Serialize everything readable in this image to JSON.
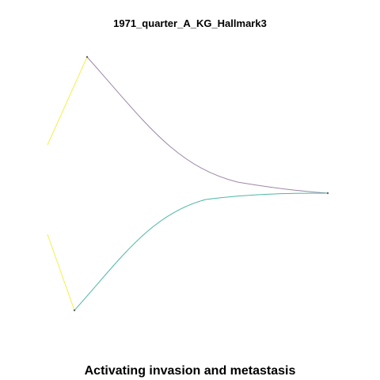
{
  "title": "1971_quarter_A_KG_Hallmark3",
  "caption": "Activating invasion and metastasis",
  "colors": {
    "upper_curve": "#9d87a8",
    "lower_curve": "#4db8a6",
    "yellow_segment": "#f3f04a",
    "node": "#666666"
  }
}
